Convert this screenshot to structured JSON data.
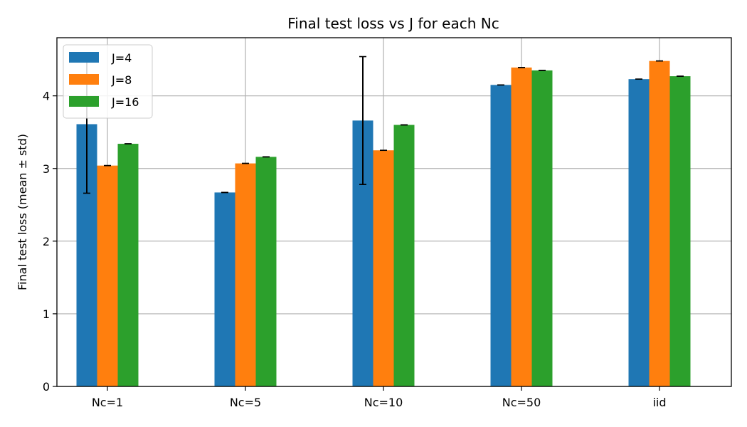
{
  "chart_data": {
    "type": "bar",
    "title": "Final test loss vs J for each Nc",
    "xlabel": "",
    "ylabel": "Final test loss (mean ± std)",
    "categories": [
      "Nc=1",
      "Nc=5",
      "Nc=10",
      "Nc=50",
      "iid"
    ],
    "ylim": [
      0,
      4.8
    ],
    "yticks": [
      0,
      1,
      2,
      3,
      4
    ],
    "grid": true,
    "legend_position": "top-left",
    "series": [
      {
        "name": "J=4",
        "color": "#1f77b4",
        "values": [
          3.61,
          2.67,
          3.66,
          4.15,
          4.23
        ],
        "errors": [
          0.95,
          0.0,
          0.88,
          0.0,
          0.0
        ]
      },
      {
        "name": "J=8",
        "color": "#ff7f0e",
        "values": [
          3.04,
          3.07,
          3.25,
          4.39,
          4.48
        ],
        "errors": [
          0.0,
          0.0,
          0.0,
          0.0,
          0.0
        ]
      },
      {
        "name": "J=16",
        "color": "#2ca02c",
        "values": [
          3.34,
          3.16,
          3.6,
          4.35,
          4.27
        ],
        "errors": [
          0.0,
          0.0,
          0.0,
          0.0,
          0.0
        ]
      }
    ]
  }
}
